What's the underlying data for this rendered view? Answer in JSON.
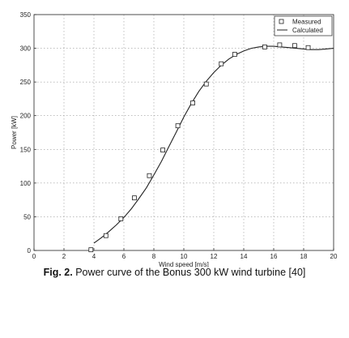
{
  "caption": {
    "label": "Fig. 2.",
    "text": "Power curve of the Bonus 300 kW wind turbine [40]"
  },
  "chart_data": {
    "type": "scatter",
    "title": "",
    "xlabel": "Wind speed [m/s]",
    "ylabel": "Power [kW]",
    "xlim": [
      0,
      20
    ],
    "ylim": [
      0,
      350
    ],
    "xticks": [
      0,
      2,
      4,
      6,
      8,
      10,
      12,
      14,
      16,
      18,
      20
    ],
    "yticks": [
      0,
      50,
      100,
      150,
      200,
      250,
      300,
      350
    ],
    "grid": true,
    "legend_position": "top-right",
    "series": [
      {
        "name": "Measured",
        "marker": "open-square",
        "x": [
          3.8,
          4.8,
          5.8,
          6.7,
          7.7,
          8.6,
          9.6,
          10.6,
          11.5,
          12.5,
          13.4,
          15.4,
          16.4,
          17.4,
          18.3
        ],
        "y": [
          1,
          22,
          47,
          78,
          111,
          149,
          185,
          219,
          247,
          277,
          291,
          302,
          305,
          304,
          301
        ]
      },
      {
        "name": "Calculated",
        "marker": "line",
        "x": [
          4,
          4.5,
          5,
          5.5,
          6,
          6.5,
          7,
          7.5,
          8,
          8.5,
          9,
          9.5,
          10,
          10.5,
          11,
          11.5,
          12,
          12.5,
          13,
          13.5,
          14,
          14.5,
          15,
          15.5,
          16,
          16.5,
          17,
          17.5,
          18,
          18.5,
          19,
          19.5,
          20
        ],
        "y": [
          11,
          19,
          28,
          38,
          49,
          62,
          77,
          93,
          112,
          132,
          154,
          176,
          198,
          218,
          236,
          251,
          264,
          275,
          284,
          291,
          296,
          300,
          302,
          303,
          303,
          302,
          301,
          300,
          299,
          298,
          298,
          299,
          300
        ]
      }
    ]
  }
}
